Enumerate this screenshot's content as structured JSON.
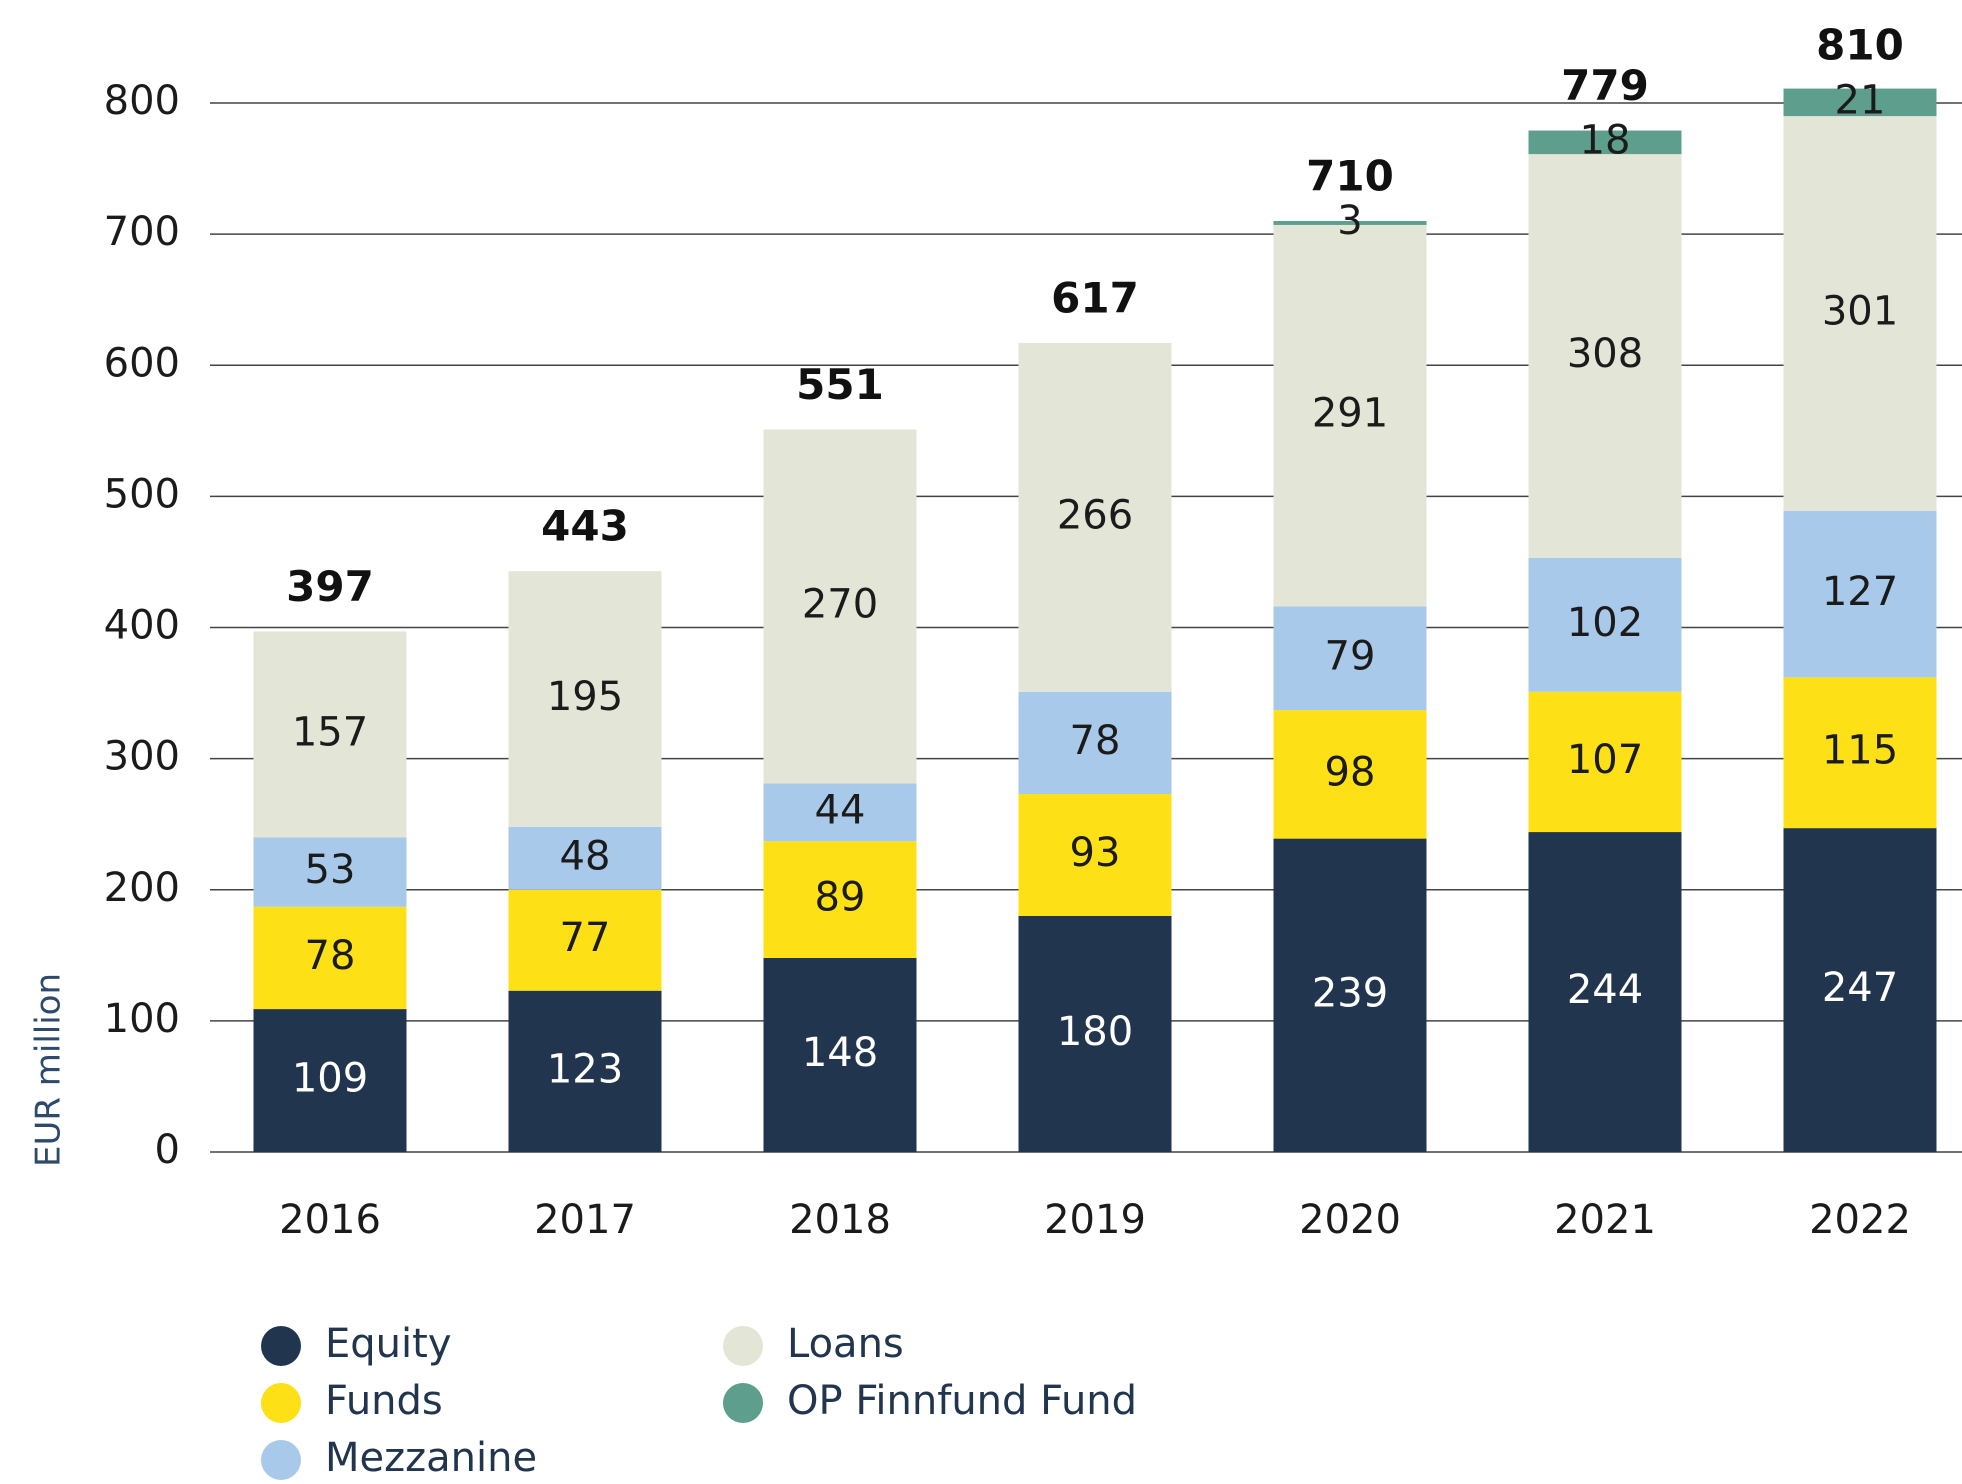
{
  "chart_data": {
    "type": "bar",
    "stacked": true,
    "y_label": "EUR million",
    "categories": [
      "2016",
      "2017",
      "2018",
      "2019",
      "2020",
      "2021",
      "2022"
    ],
    "series": [
      {
        "name": "Equity",
        "color": "#22354e",
        "values": [
          109,
          123,
          148,
          180,
          239,
          244,
          247
        ]
      },
      {
        "name": "Funds",
        "color": "#fde015",
        "values": [
          78,
          77,
          89,
          93,
          98,
          107,
          115
        ]
      },
      {
        "name": "Mezzanine",
        "color": "#a8c9ea",
        "values": [
          53,
          48,
          44,
          78,
          79,
          102,
          127
        ]
      },
      {
        "name": "Loans",
        "color": "#e3e5d6",
        "values": [
          157,
          195,
          270,
          266,
          291,
          308,
          301
        ]
      },
      {
        "name": "OP Finnfund Fund",
        "color": "#5e9e8c",
        "values": [
          null,
          null,
          null,
          null,
          3,
          18,
          21
        ]
      }
    ],
    "totals": [
      397,
      443,
      551,
      617,
      710,
      779,
      810
    ],
    "ylim": [
      0,
      800
    ],
    "yticks": [
      0,
      100,
      200,
      300,
      400,
      500,
      600,
      700,
      800
    ],
    "grid": true
  }
}
